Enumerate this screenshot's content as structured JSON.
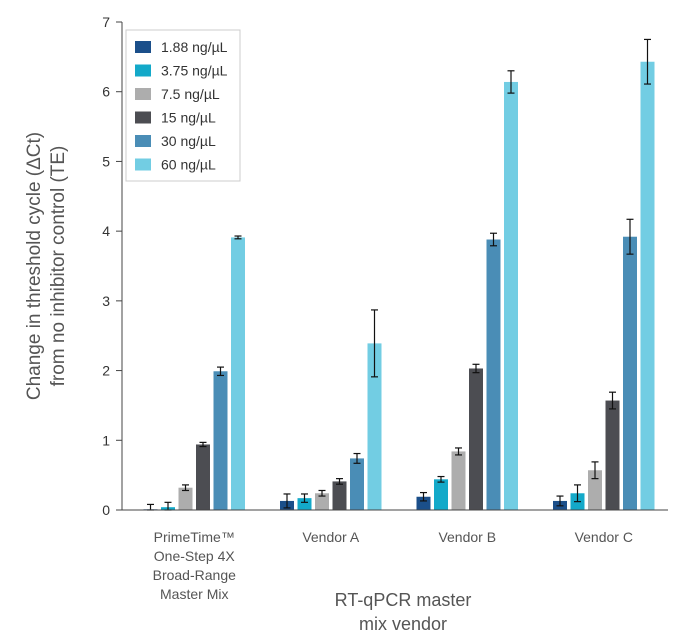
{
  "chart_data": {
    "type": "bar",
    "title": "",
    "ylabel_lines": [
      "Change in threshold cycle (ΔCt)",
      "from no inhibitor control (TE)"
    ],
    "xlabel_lines": [
      "RT-qPCR master",
      "mix vendor"
    ],
    "ylim": [
      0,
      7
    ],
    "yticks": [
      "0",
      "1",
      "2",
      "3",
      "4",
      "5",
      "6",
      "7"
    ],
    "grid": false,
    "legend_position": "top-left",
    "categories": [
      [
        "PrimeTime™",
        "One-Step 4X",
        "Broad-Range",
        "Master Mix"
      ],
      [
        "Vendor A"
      ],
      [
        "Vendor B"
      ],
      [
        "Vendor C"
      ]
    ],
    "series": [
      {
        "name": "1.88 ng/µL",
        "color": "#1b4f8a",
        "values": [
          0.01,
          0.13,
          0.19,
          0.13
        ],
        "errors": [
          0.07,
          0.1,
          0.06,
          0.07
        ]
      },
      {
        "name": "3.75 ng/µL",
        "color": "#13a9c9",
        "values": [
          0.04,
          0.17,
          0.44,
          0.24
        ],
        "errors": [
          0.07,
          0.06,
          0.04,
          0.12
        ]
      },
      {
        "name": "7.5 ng/µL",
        "color": "#adadad",
        "values": [
          0.32,
          0.24,
          0.84,
          0.57
        ],
        "errors": [
          0.04,
          0.04,
          0.05,
          0.12
        ]
      },
      {
        "name": "15 ng/µL",
        "color": "#4c4d52",
        "values": [
          0.94,
          0.41,
          2.03,
          1.57
        ],
        "errors": [
          0.03,
          0.04,
          0.06,
          0.12
        ]
      },
      {
        "name": "30 ng/µL",
        "color": "#4a8db6",
        "values": [
          1.99,
          0.74,
          3.88,
          3.92
        ],
        "errors": [
          0.06,
          0.07,
          0.09,
          0.25
        ]
      },
      {
        "name": "60 ng/µL",
        "color": "#72cde3",
        "values": [
          3.91,
          2.39,
          6.14,
          6.43
        ],
        "errors": [
          0.02,
          0.48,
          0.16,
          0.32
        ]
      }
    ]
  }
}
